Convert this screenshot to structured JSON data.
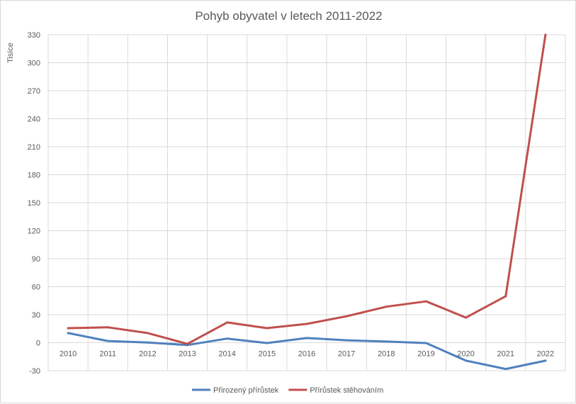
{
  "chart_data": {
    "type": "line",
    "title": "Pohyb obyvatel v letech 2011-2022",
    "ylabel": "Tisíce",
    "xlabel": "",
    "categories": [
      "2010",
      "2011",
      "2012",
      "2013",
      "2014",
      "2015",
      "2016",
      "2017",
      "2018",
      "2019",
      "2020",
      "2021",
      "2022"
    ],
    "ylim": [
      -30,
      330
    ],
    "yticks": [
      -30,
      0,
      30,
      60,
      90,
      120,
      150,
      180,
      210,
      240,
      270,
      300,
      330
    ],
    "grid": true,
    "legend_position": "bottom",
    "series": [
      {
        "name": "Přirozený přírůstek",
        "color": "#4f81bd",
        "values": [
          10.3,
          1.8,
          0.2,
          -2.5,
          4.4,
          -0.4,
          5.0,
          2.6,
          1.2,
          -0.4,
          -19.2,
          -28.2,
          -19.3
        ]
      },
      {
        "name": "Přírůstek stěhováním",
        "color": "#c0504d",
        "values": [
          15.6,
          16.5,
          10.3,
          -1.3,
          21.7,
          15.6,
          20.1,
          28.3,
          38.6,
          44.3,
          26.9,
          49.8,
          330.0
        ]
      }
    ]
  }
}
